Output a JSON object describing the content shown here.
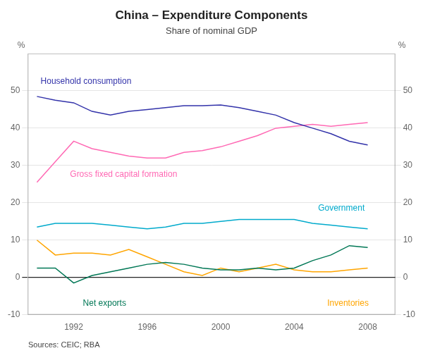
{
  "chart_data": {
    "type": "line",
    "title": "China – Expenditure Components",
    "subtitle": "Share of nominal GDP",
    "annotations": [
      "Sources: CEIC; RBA"
    ],
    "ylabel": "%",
    "y2label": "%",
    "x": [
      1990,
      1991,
      1992,
      1993,
      1994,
      1995,
      1996,
      1997,
      1998,
      1999,
      2000,
      2001,
      2002,
      2003,
      2004,
      2005,
      2006,
      2007,
      2008
    ],
    "series": [
      {
        "name": "Household consumption",
        "color": "#3333AA",
        "values": [
          48.5,
          47.5,
          46.8,
          44.5,
          43.5,
          44.5,
          45.0,
          45.5,
          46.0,
          46.0,
          46.2,
          45.5,
          44.5,
          43.5,
          41.5,
          40.0,
          38.5,
          36.5,
          35.5
        ]
      },
      {
        "name": "Gross fixed capital formation",
        "color": "#FF69B4",
        "values": [
          25.5,
          31.0,
          36.5,
          34.5,
          33.5,
          32.5,
          32.0,
          32.0,
          33.5,
          34.0,
          35.0,
          36.5,
          38.0,
          40.0,
          40.5,
          41.0,
          40.5,
          41.0,
          41.5
        ]
      },
      {
        "name": "Government",
        "color": "#00AACC",
        "values": [
          13.5,
          14.5,
          14.5,
          14.5,
          14.0,
          13.5,
          13.0,
          13.5,
          14.5,
          14.5,
          15.0,
          15.5,
          15.5,
          15.5,
          15.5,
          14.5,
          14.0,
          13.5,
          13.0
        ]
      },
      {
        "name": "Net exports",
        "color": "#007755",
        "values": [
          2.5,
          2.5,
          -1.5,
          0.5,
          1.5,
          2.5,
          3.5,
          4.0,
          3.5,
          2.5,
          2.0,
          2.0,
          2.5,
          2.0,
          2.5,
          4.5,
          6.0,
          8.5,
          8.0
        ]
      },
      {
        "name": "Inventories",
        "color": "#FFA500",
        "values": [
          10.0,
          6.0,
          6.5,
          6.5,
          6.0,
          7.5,
          5.5,
          3.5,
          1.5,
          0.5,
          2.5,
          1.5,
          2.5,
          3.5,
          2.0,
          1.5,
          1.5,
          2.0,
          2.5
        ]
      }
    ],
    "xlim": [
      1989.5,
      2009.5
    ],
    "xticks": [
      1992,
      1996,
      2000,
      2004,
      2008
    ],
    "ylim": [
      -10,
      60
    ],
    "yticks": [
      -10,
      0,
      10,
      20,
      30,
      40,
      50
    ],
    "y2lim": [
      -10,
      60
    ],
    "y2ticks": [
      -10,
      0,
      10,
      20,
      30,
      40,
      50
    ],
    "grid": "y"
  }
}
